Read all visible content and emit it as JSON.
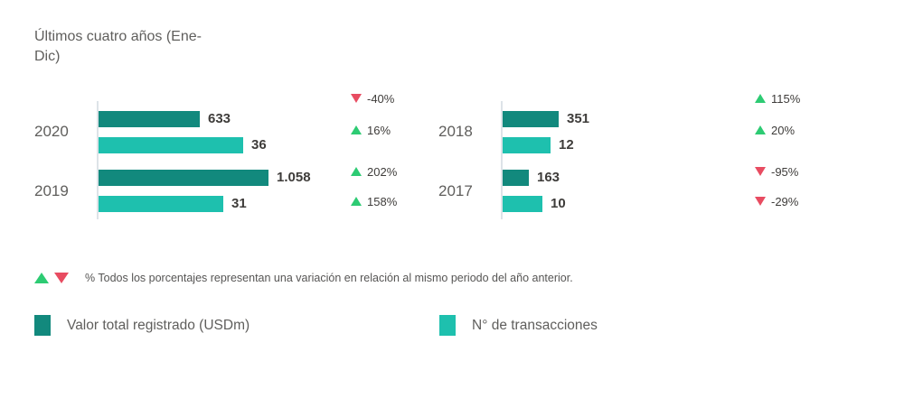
{
  "header": {
    "title_line1": "Últimos cuatro años (Ene-",
    "title_line2": "Dic)"
  },
  "footnote": {
    "text": "% Todos los porcentajes representan una variación en relación al mismo periodo del año anterior."
  },
  "legend": {
    "items": [
      {
        "label": "Valor total registrado (USDm)",
        "color": "#12897D"
      },
      {
        "label": "N° de transacciones",
        "color": "#1EC0AE"
      }
    ]
  },
  "colors": {
    "value_series": "#12897D",
    "count_series": "#1EC0AE",
    "increase": "#2DCB73",
    "decrease": "#E84C61",
    "axis_line": "#DDE3E8",
    "text_primary": "#3E3C3A",
    "text_secondary": "#5F5E5C"
  },
  "chart_data": {
    "type": "bar",
    "orientation": "horizontal",
    "title": "Últimos cuatro años (Ene-Dic)",
    "legend_position": "bottom",
    "note": "% change vs mismo periodo del año anterior",
    "panels": [
      {
        "categories": [
          "2020",
          "2019"
        ],
        "series": [
          {
            "name": "Valor total registrado (USDm)",
            "values": [
              633,
              1058
            ],
            "labels": [
              "633",
              "1.058"
            ],
            "changes": [
              {
                "dir": "down",
                "label": "-40%"
              },
              {
                "dir": "up",
                "label": "202%"
              }
            ]
          },
          {
            "name": "N° de transacciones",
            "values": [
              36,
              31
            ],
            "labels": [
              "36",
              "31"
            ],
            "changes": [
              {
                "dir": "up",
                "label": "16%"
              },
              {
                "dir": "up",
                "label": "158%"
              }
            ]
          }
        ]
      },
      {
        "categories": [
          "2018",
          "2017"
        ],
        "series": [
          {
            "name": "Valor total registrado (USDm)",
            "values": [
              351,
              163
            ],
            "labels": [
              "351",
              "163"
            ],
            "changes": [
              {
                "dir": "up",
                "label": "115%"
              },
              {
                "dir": "down",
                "label": "-95%"
              }
            ]
          },
          {
            "name": "N° de transacciones",
            "values": [
              12,
              10
            ],
            "labels": [
              "12",
              "10"
            ],
            "changes": [
              {
                "dir": "up",
                "label": "20%"
              },
              {
                "dir": "down",
                "label": "-29%"
              }
            ]
          }
        ]
      }
    ]
  }
}
